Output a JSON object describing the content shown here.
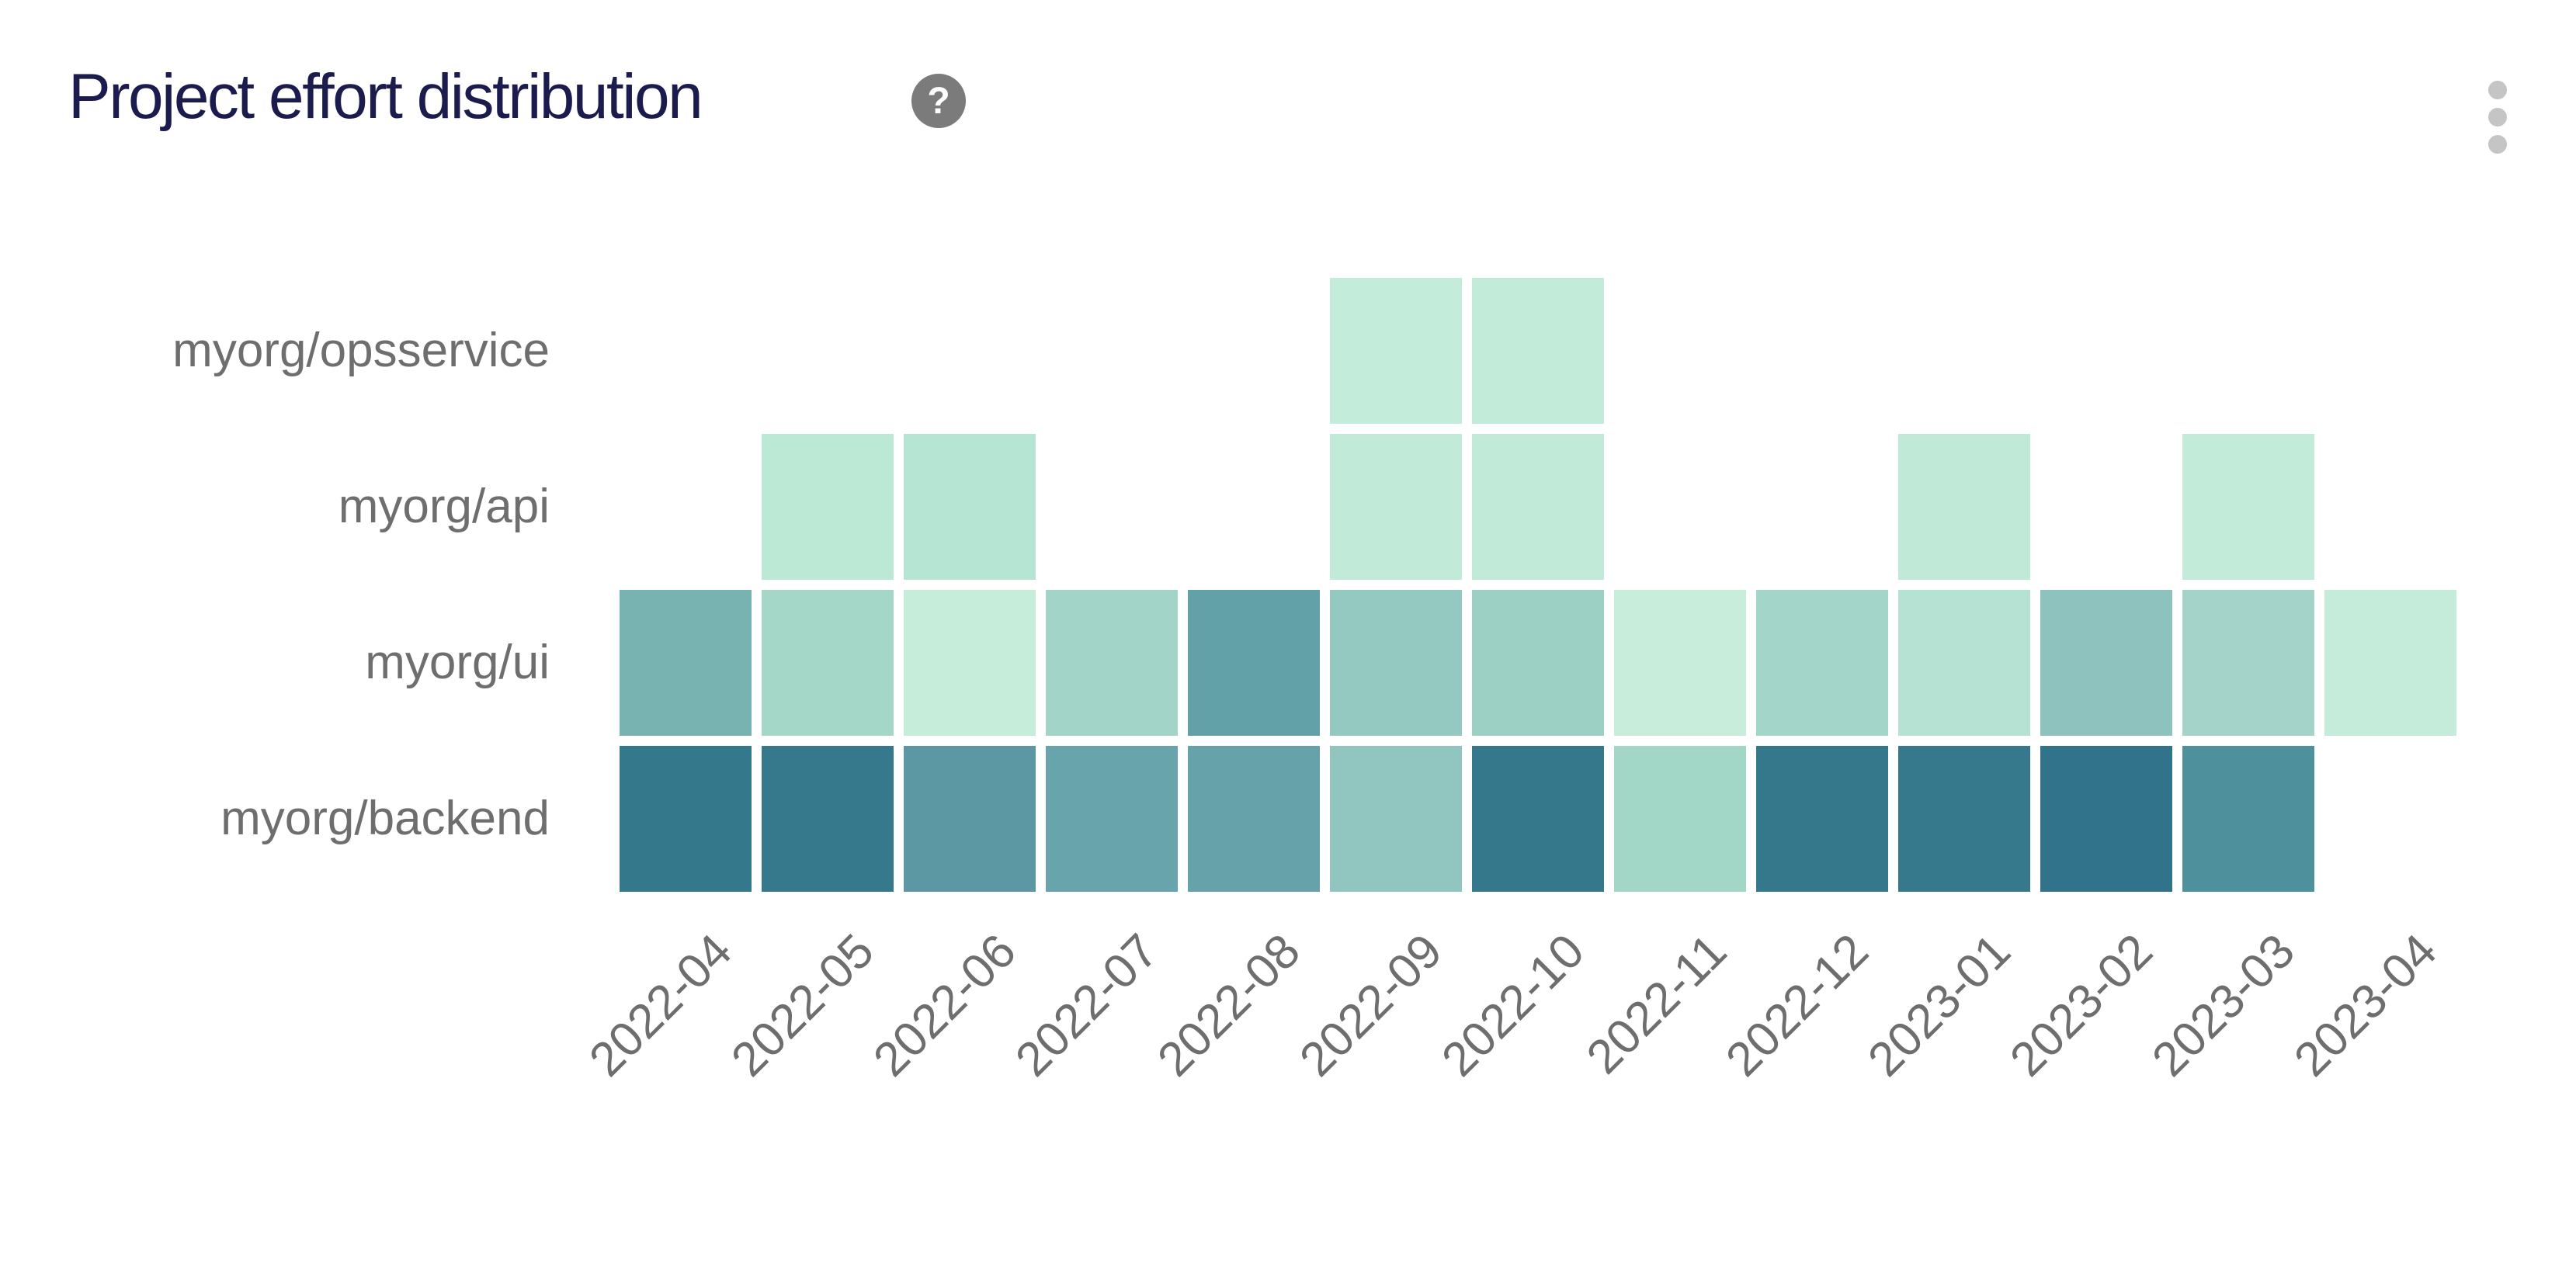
{
  "header": {
    "title": "Project effort distribution",
    "help_icon_glyph": "?",
    "menu_icon": "kebab-vertical-icon"
  },
  "colors": {
    "background": "#ffffff",
    "title_text": "#1b1b4e",
    "axis_label_text": "#6e6e6e",
    "help_icon_bg": "#7b7b7b",
    "help_icon_glyph": "#ffffff",
    "menu_dots": "#c5c5c5"
  },
  "chart_data": {
    "type": "heatmap",
    "title": "Project effort distribution",
    "xlabel": "",
    "ylabel": "",
    "legend": "none",
    "grid": "off",
    "x_categories": [
      "2022-04",
      "2022-05",
      "2022-06",
      "2022-07",
      "2022-08",
      "2022-09",
      "2022-10",
      "2022-11",
      "2022-12",
      "2023-01",
      "2023-02",
      "2023-03",
      "2023-04"
    ],
    "y_categories": [
      "myorg/opsservice",
      "myorg/api",
      "myorg/ui",
      "myorg/backend"
    ],
    "x_label_rotation_deg": 45,
    "value_scale": "estimated relative effort intensity 0-1 (1 = darkest cell); empty months have no cell",
    "cells": [
      {
        "y": "myorg/opsservice",
        "x": "2022-09",
        "color": "#c3ecda",
        "value": 0.08
      },
      {
        "y": "myorg/opsservice",
        "x": "2022-10",
        "color": "#c3ebd9",
        "value": 0.08
      },
      {
        "y": "myorg/api",
        "x": "2022-05",
        "color": "#bce8d6",
        "value": 0.1
      },
      {
        "y": "myorg/api",
        "x": "2022-06",
        "color": "#b7e5d3",
        "value": 0.13
      },
      {
        "y": "myorg/api",
        "x": "2022-09",
        "color": "#c1ead8",
        "value": 0.09
      },
      {
        "y": "myorg/api",
        "x": "2022-10",
        "color": "#c2ead8",
        "value": 0.09
      },
      {
        "y": "myorg/api",
        "x": "2023-01",
        "color": "#c1e9d7",
        "value": 0.09
      },
      {
        "y": "myorg/api",
        "x": "2023-03",
        "color": "#c3ebd9",
        "value": 0.08
      },
      {
        "y": "myorg/ui",
        "x": "2022-04",
        "color": "#78b2b1",
        "value": 0.5
      },
      {
        "y": "myorg/ui",
        "x": "2022-05",
        "color": "#a5d7c8",
        "value": 0.25
      },
      {
        "y": "myorg/ui",
        "x": "2022-06",
        "color": "#c6ecda",
        "value": 0.07
      },
      {
        "y": "myorg/ui",
        "x": "2022-07",
        "color": "#a2d5c7",
        "value": 0.27
      },
      {
        "y": "myorg/ui",
        "x": "2022-08",
        "color": "#63a1a8",
        "value": 0.62
      },
      {
        "y": "myorg/ui",
        "x": "2022-09",
        "color": "#93c9c0",
        "value": 0.35
      },
      {
        "y": "myorg/ui",
        "x": "2022-10",
        "color": "#9cd0c5",
        "value": 0.3
      },
      {
        "y": "myorg/ui",
        "x": "2022-11",
        "color": "#c8eddb",
        "value": 0.06
      },
      {
        "y": "myorg/ui",
        "x": "2022-12",
        "color": "#a3d6c9",
        "value": 0.26
      },
      {
        "y": "myorg/ui",
        "x": "2023-01",
        "color": "#b5e2d2",
        "value": 0.16
      },
      {
        "y": "myorg/ui",
        "x": "2023-02",
        "color": "#8dc2bf",
        "value": 0.4
      },
      {
        "y": "myorg/ui",
        "x": "2023-03",
        "color": "#a4d4c9",
        "value": 0.26
      },
      {
        "y": "myorg/ui",
        "x": "2023-04",
        "color": "#c5ecda",
        "value": 0.07
      },
      {
        "y": "myorg/backend",
        "x": "2022-04",
        "color": "#33788b",
        "value": 0.92
      },
      {
        "y": "myorg/backend",
        "x": "2022-05",
        "color": "#36798c",
        "value": 0.9
      },
      {
        "y": "myorg/backend",
        "x": "2022-06",
        "color": "#5c98a4",
        "value": 0.66
      },
      {
        "y": "myorg/backend",
        "x": "2022-07",
        "color": "#68a4ab",
        "value": 0.6
      },
      {
        "y": "myorg/backend",
        "x": "2022-08",
        "color": "#66a2a9",
        "value": 0.61
      },
      {
        "y": "myorg/backend",
        "x": "2022-09",
        "color": "#91c6c0",
        "value": 0.36
      },
      {
        "y": "myorg/backend",
        "x": "2022-10",
        "color": "#35788c",
        "value": 0.91
      },
      {
        "y": "myorg/backend",
        "x": "2022-11",
        "color": "#a2d7c7",
        "value": 0.26
      },
      {
        "y": "myorg/backend",
        "x": "2022-12",
        "color": "#35788b",
        "value": 0.91
      },
      {
        "y": "myorg/backend",
        "x": "2023-01",
        "color": "#36798c",
        "value": 0.9
      },
      {
        "y": "myorg/backend",
        "x": "2023-02",
        "color": "#30738a",
        "value": 0.95
      },
      {
        "y": "myorg/backend",
        "x": "2023-03",
        "color": "#4f909d",
        "value": 0.72
      }
    ]
  }
}
